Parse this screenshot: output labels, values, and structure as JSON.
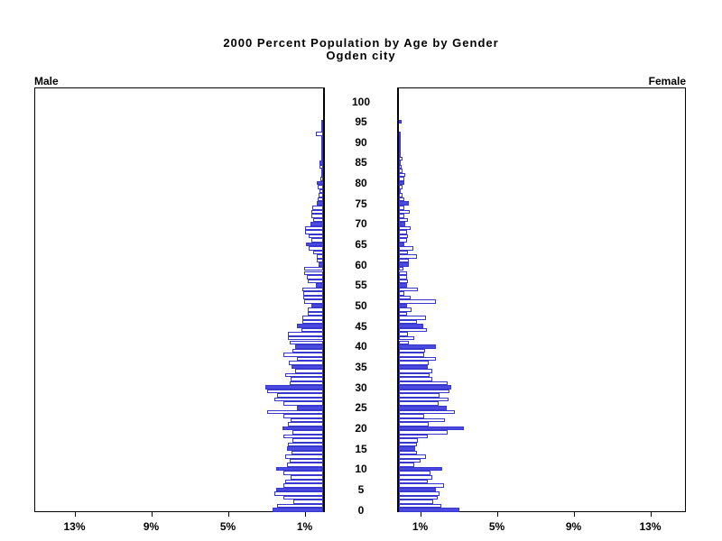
{
  "title": {
    "line1": "2000 Percent Population by Age by Gender",
    "line2": "Ogden city"
  },
  "panel_labels": {
    "left": "Male",
    "right": "Female"
  },
  "colors": {
    "bar_fill": "#4A4AE0",
    "bar_outline": "#3838CE",
    "axis": "#000000",
    "background": "#FFFFFF",
    "text": "#000000"
  },
  "chart_data": {
    "type": "bar",
    "subtype": "population_pyramid",
    "title": "2000 Percent Population by Age by Gender",
    "subtitle": "Ogden city",
    "age_axis": {
      "min": 0,
      "max": 100,
      "tick_step": 5,
      "tick_labels": [
        "0",
        "5",
        "10",
        "15",
        "20",
        "25",
        "30",
        "35",
        "40",
        "45",
        "50",
        "55",
        "60",
        "65",
        "70",
        "75",
        "80",
        "85",
        "90",
        "95",
        "100"
      ]
    },
    "value_axis": {
      "unit": "percent",
      "max": 15,
      "tick_values": [
        1,
        5,
        9,
        13
      ],
      "tick_labels": [
        "1%",
        "5%",
        "9%",
        "13%"
      ]
    },
    "highlight_rule": "bars for ages divisible by 5 are solid filled; other ages outlined only",
    "series": [
      {
        "name": "Male",
        "side": "left",
        "values_pct_by_age": [
          2.65,
          2.4,
          1.55,
          2.05,
          2.55,
          2.45,
          2.05,
          2.0,
          1.7,
          2.05,
          2.45,
          1.9,
          1.75,
          2.0,
          1.65,
          1.9,
          1.85,
          1.6,
          2.05,
          1.6,
          2.1,
          1.85,
          1.7,
          2.05,
          2.9,
          1.35,
          2.05,
          2.55,
          2.4,
          2.9,
          3.0,
          1.75,
          1.7,
          2.0,
          1.45,
          1.65,
          1.8,
          1.35,
          2.05,
          1.6,
          1.45,
          1.75,
          1.85,
          1.85,
          1.15,
          1.35,
          1.1,
          1.1,
          0.8,
          0.8,
          0.6,
          1.0,
          1.05,
          1.05,
          1.1,
          0.4,
          0.8,
          0.85,
          1.0,
          1.0,
          0.25,
          0.35,
          0.35,
          0.5,
          0.75,
          0.9,
          0.6,
          0.75,
          0.95,
          0.95,
          0.65,
          0.5,
          0.6,
          0.6,
          0.55,
          0.35,
          0.3,
          0.25,
          0.2,
          0.3,
          0.35,
          0.15,
          0.1,
          0.1,
          0.2,
          0.2,
          0.1,
          0.05,
          0.05,
          0.1,
          0.1,
          0.1,
          0.4,
          0.05,
          0.05,
          0.03,
          0.0,
          0.0,
          0.0,
          0.0,
          0.0
        ]
      },
      {
        "name": "Female",
        "side": "right",
        "values_pct_by_age": [
          3.15,
          2.2,
          1.8,
          2.0,
          2.1,
          1.95,
          2.35,
          1.5,
          1.75,
          1.65,
          2.25,
          0.8,
          1.15,
          1.4,
          0.95,
          0.85,
          0.95,
          1.0,
          1.5,
          2.55,
          3.4,
          1.55,
          2.4,
          1.3,
          2.9,
          2.5,
          2.05,
          2.6,
          2.1,
          2.65,
          2.75,
          2.55,
          1.75,
          1.6,
          1.75,
          1.5,
          1.55,
          1.95,
          1.3,
          1.35,
          1.95,
          0.5,
          0.8,
          0.45,
          1.45,
          1.25,
          0.95,
          1.4,
          0.4,
          0.65,
          0.4,
          1.95,
          0.6,
          0.3,
          1.0,
          0.4,
          0.45,
          0.4,
          0.4,
          0.25,
          0.5,
          0.5,
          0.95,
          0.45,
          0.75,
          0.3,
          0.4,
          0.45,
          0.4,
          0.6,
          0.35,
          0.45,
          0.3,
          0.55,
          0.3,
          0.5,
          0.3,
          0.2,
          0.1,
          0.2,
          0.3,
          0.3,
          0.35,
          0.2,
          0.15,
          0.1,
          0.2,
          0.05,
          0.1,
          0.05,
          0.05,
          0.05,
          0.05,
          0.0,
          0.0,
          0.15,
          0.0,
          0.0,
          0.0,
          0.0,
          0.0
        ]
      }
    ]
  }
}
